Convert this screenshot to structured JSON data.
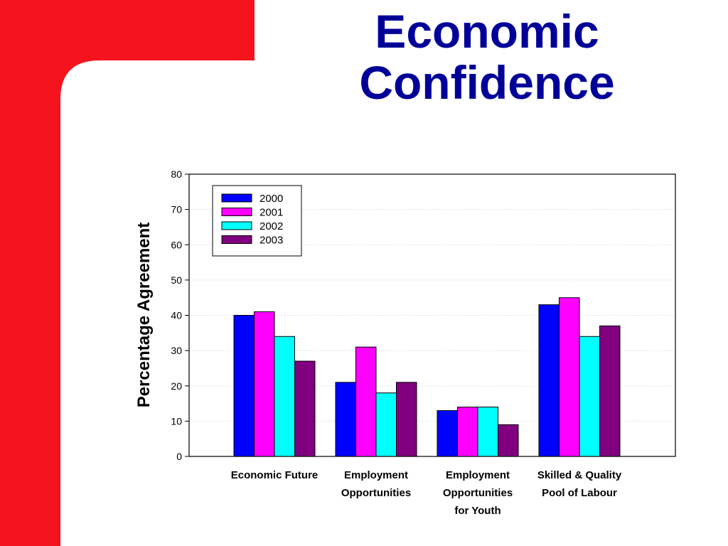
{
  "slide": {
    "title_line1": "Economic",
    "title_line2": "Confidence",
    "colors": {
      "background": "#ffffff",
      "frame": "#f5141e",
      "title": "#000099"
    }
  },
  "chart_data": {
    "type": "bar",
    "title": "",
    "xlabel": "",
    "ylabel": "Percentage Agreement",
    "ylim": [
      0,
      80
    ],
    "yticks": [
      0,
      10,
      20,
      30,
      40,
      50,
      60,
      70,
      80
    ],
    "grid": true,
    "legend_position": "top-left",
    "categories": [
      [
        "Economic Future"
      ],
      [
        "Employment",
        "Opportunities"
      ],
      [
        "Employment",
        "Opportunities",
        "for Youth"
      ],
      [
        "Skilled & Quality",
        "Pool of Labour"
      ]
    ],
    "series": [
      {
        "name": "2000",
        "color": "#0000ff",
        "values": [
          40,
          21,
          13,
          43
        ]
      },
      {
        "name": "2001",
        "color": "#ff00ff",
        "values": [
          41,
          31,
          14,
          45
        ]
      },
      {
        "name": "2002",
        "color": "#00ffff",
        "values": [
          34,
          18,
          14,
          34
        ]
      },
      {
        "name": "2003",
        "color": "#800080",
        "values": [
          27,
          21,
          9,
          37
        ]
      }
    ]
  }
}
